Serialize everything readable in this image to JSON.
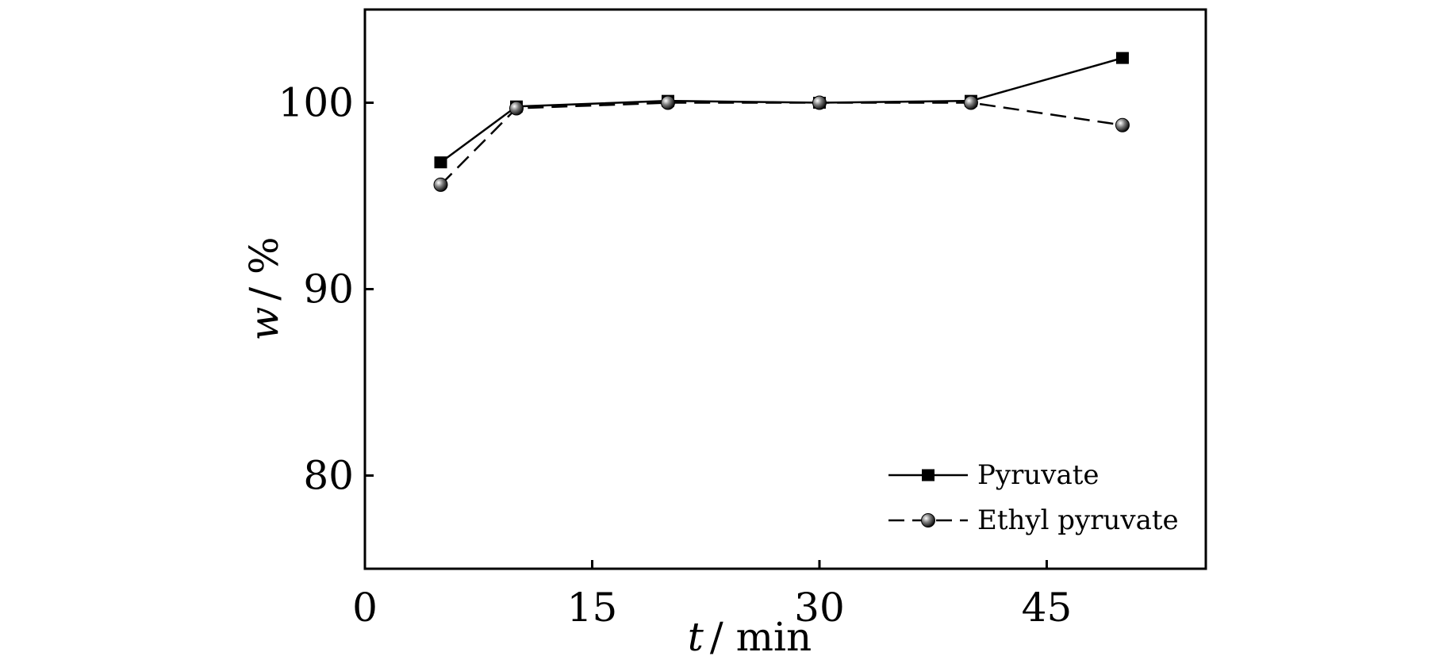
{
  "chart_data": {
    "type": "line",
    "title": "",
    "xlabel": {
      "var": "t",
      "unit": "/ min"
    },
    "ylabel": {
      "var": "w",
      "unit": "/ %"
    },
    "xlim": [
      0,
      55.5
    ],
    "ylim": [
      75,
      105
    ],
    "x_ticks": [
      0,
      15,
      30,
      45
    ],
    "y_ticks": [
      80,
      90,
      100
    ],
    "grid": false,
    "legend_position": "bottom-right",
    "series": [
      {
        "name": "Pyruvate",
        "line_style": "solid",
        "marker": "square",
        "color": "#000000",
        "x": [
          5,
          10,
          20,
          30,
          40,
          50
        ],
        "y": [
          96.8,
          99.8,
          100.1,
          100.0,
          100.1,
          102.4
        ]
      },
      {
        "name": "Ethyl pyruvate",
        "line_style": "dashed",
        "marker": "circle",
        "color": "#000000",
        "x": [
          5,
          10,
          20,
          30,
          40,
          50
        ],
        "y": [
          95.6,
          99.7,
          100.0,
          100.0,
          100.0,
          98.8
        ]
      }
    ]
  }
}
